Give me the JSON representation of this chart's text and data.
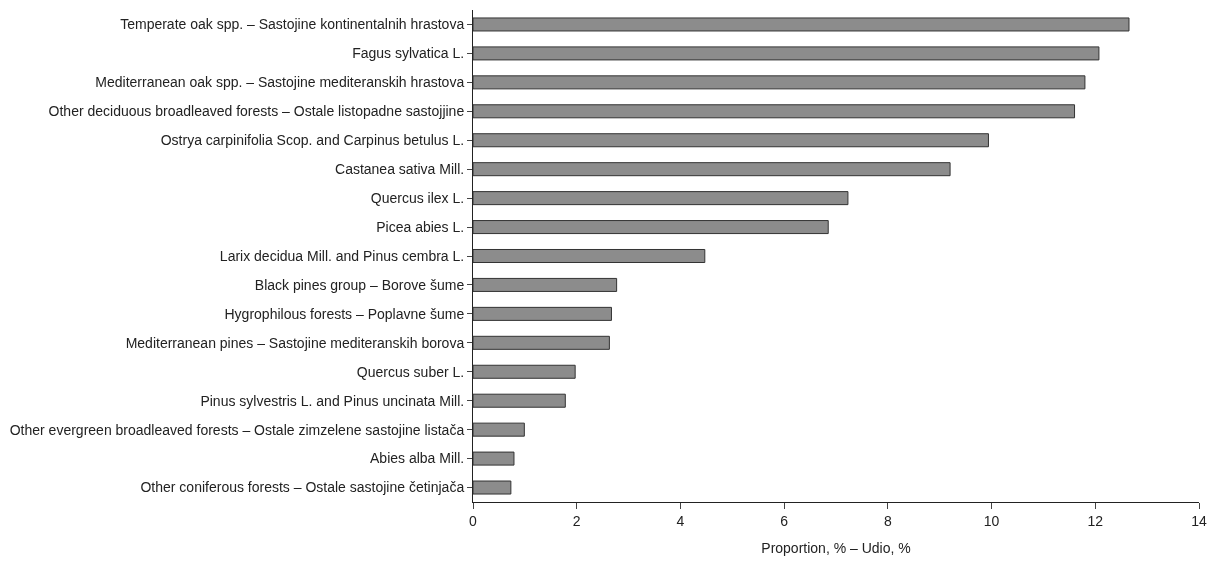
{
  "chart_data": {
    "type": "bar",
    "orientation": "horizontal",
    "xlabel": "Proportion, % – Udio, %",
    "categories": [
      "Temperate oak spp. – Sastojine kontinentalnih hrastova",
      "Fagus sylvatica L.",
      "Mediterranean oak spp. – Sastojine mediteranskih hrastova",
      "Other deciduous broadleaved forests – Ostale listopadne sastojjine",
      "Ostrya carpinifolia Scop. and Carpinus betulus L.",
      "Castanea sativa Mill.",
      "Quercus ilex L.",
      "Picea abies L.",
      "Larix decidua Mill. and Pinus cembra L.",
      "Black pines group – Borove šume",
      "Hygrophilous forests – Poplavne šume",
      "Mediterranean pines – Sastojine mediteranskih borova",
      "Quercus suber L.",
      "Pinus sylvestris L. and Pinus uncinata Mill.",
      "Other evergreen broadleaved forests – Ostale zimzelene sastojine listača",
      "Abies alba Mill.",
      "Other coniferous forests – Ostale sastojine četinjača"
    ],
    "values": [
      12.65,
      12.07,
      11.8,
      11.6,
      9.94,
      9.2,
      7.23,
      6.85,
      4.47,
      2.77,
      2.67,
      2.63,
      1.97,
      1.78,
      0.99,
      0.79,
      0.73
    ],
    "color": "#8c8c8c",
    "xlim": [
      0,
      14
    ],
    "xticks": [
      0,
      2,
      4,
      6,
      8,
      10,
      12,
      14
    ]
  }
}
